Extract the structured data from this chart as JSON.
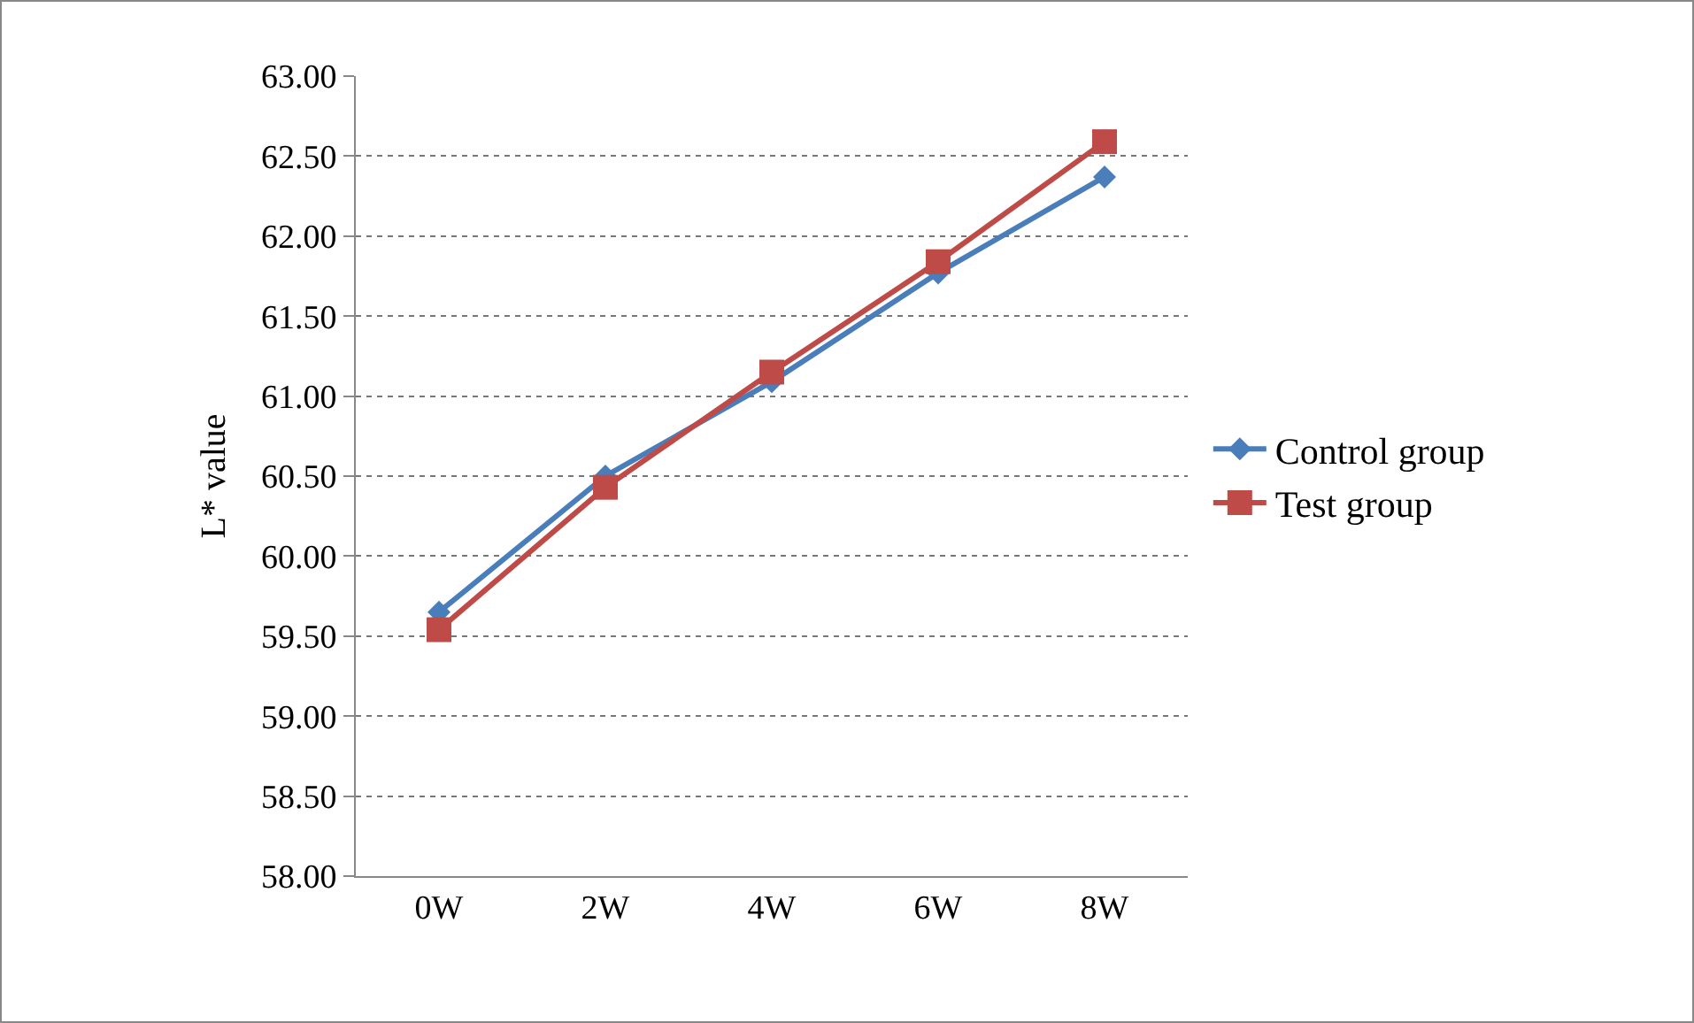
{
  "chart_data": {
    "type": "line",
    "ylabel": "L* value",
    "categories": [
      "0W",
      "2W",
      "4W",
      "6W",
      "8W"
    ],
    "series": [
      {
        "name": "Control group",
        "color": "#4a7ebb",
        "marker": "diamond",
        "values": [
          59.65,
          60.5,
          61.09,
          61.77,
          62.37
        ]
      },
      {
        "name": "Test group",
        "color": "#be4b48",
        "marker": "square",
        "values": [
          59.54,
          60.43,
          61.15,
          61.84,
          62.59
        ]
      }
    ],
    "ylim": [
      58,
      63
    ],
    "yticks": [
      {
        "value": 58,
        "label": "58.00"
      },
      {
        "value": 58.5,
        "label": "58.50"
      },
      {
        "value": 59,
        "label": "59.00"
      },
      {
        "value": 59.5,
        "label": "59.50"
      },
      {
        "value": 60,
        "label": "60.00"
      },
      {
        "value": 60.5,
        "label": "60.50"
      },
      {
        "value": 61,
        "label": "61.00"
      },
      {
        "value": 61.5,
        "label": "61.50"
      },
      {
        "value": 62,
        "label": "62.00"
      },
      {
        "value": 62.5,
        "label": "62.50"
      },
      {
        "value": 63,
        "label": "63.00"
      }
    ],
    "grid": "y",
    "legend": "right",
    "line_style": "solid"
  }
}
